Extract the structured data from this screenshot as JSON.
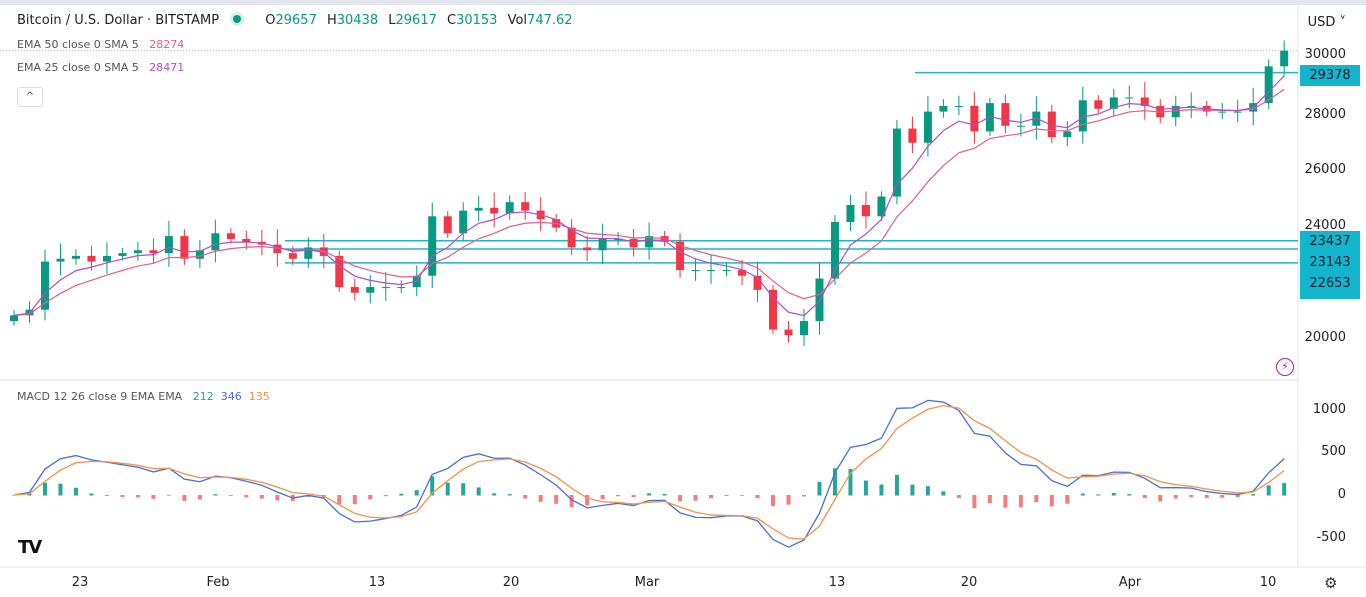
{
  "header": {
    "symbol": "Bitcoin / U.S. Dollar · BITSTAMP",
    "ohlc": {
      "o_label": "O",
      "o": "29657",
      "h_label": "H",
      "h": "30438",
      "l_label": "L",
      "l": "29617",
      "c_label": "C",
      "c": "30153",
      "vol_label": "Vol",
      "vol": "747.62"
    },
    "currency": "USD"
  },
  "indicators": [
    {
      "label": "EMA 50 close 0 SMA 5",
      "value": "28274",
      "color": "#e06088"
    },
    {
      "label": "EMA 25 close 0 SMA 5",
      "value": "28471",
      "color": "#b04fc8"
    }
  ],
  "macd": {
    "label": "MACD 12 26 close 9 EMA EMA",
    "hist": "212",
    "macd": "346",
    "signal": "135",
    "colors": {
      "hist": "#26a69a",
      "macd": "#4a6fd8",
      "signal": "#f0944a"
    }
  },
  "collapse_icon": "^",
  "price_axis": [
    "30000",
    "28000",
    "26000",
    "24000",
    "20000"
  ],
  "macd_axis": [
    "1000",
    "500",
    "0",
    "-500"
  ],
  "time_axis": [
    "23",
    "Feb",
    "13",
    "20",
    "Mar",
    "13",
    "20",
    "Apr",
    "10"
  ],
  "levels": [
    "29378",
    "23437",
    "23143",
    "22653"
  ],
  "colors": {
    "up": "#089981",
    "down": "#f23645",
    "level": "#22b5c6"
  },
  "chart_data": {
    "type": "candlestick",
    "x_start": "Jan 19",
    "closes": [
      20800,
      21000,
      22700,
      22800,
      22900,
      22700,
      22900,
      23000,
      23100,
      23000,
      23600,
      22800,
      23100,
      23700,
      23500,
      23400,
      23300,
      23000,
      22800,
      23200,
      22900,
      21800,
      21600,
      21800,
      21800,
      21800,
      22200,
      24300,
      23700,
      24500,
      24600,
      24400,
      24800,
      24500,
      24200,
      23900,
      23200,
      23100,
      23500,
      23500,
      23200,
      23600,
      23400,
      22400,
      22400,
      22400,
      22400,
      22200,
      21700,
      20300,
      20100,
      20600,
      22100,
      24100,
      24700,
      24300,
      25000,
      27400,
      26900,
      28000,
      28200,
      28200,
      27300,
      28300,
      27500,
      27500,
      28000,
      27100,
      27300,
      28400,
      28100,
      28500,
      28500,
      28200,
      27800,
      28200,
      28200,
      28000,
      28000,
      28000,
      28300,
      29600,
      30153
    ],
    "levels": [
      29378,
      23437,
      23143,
      22653
    ],
    "ema_periods": [
      50,
      25
    ],
    "ylim": [
      19500,
      30700
    ],
    "macd_ylim": [
      -700,
      1150
    ]
  }
}
